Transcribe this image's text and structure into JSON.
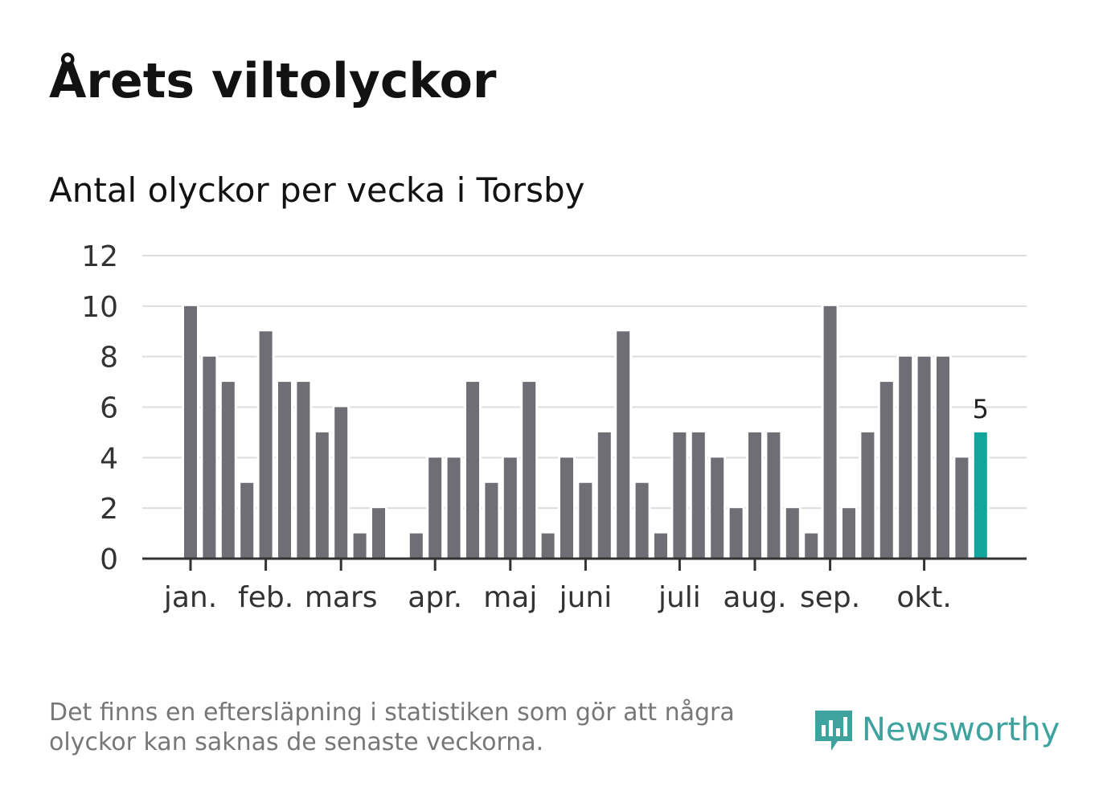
{
  "title": "Årets viltolyckor",
  "subtitle": "Antal olyckor per vecka i Torsby",
  "note": "Det finns en eftersläpning i statistiken som gör att några olyckor kan saknas de senaste veckorna.",
  "logo": "Newsworthy",
  "colors": {
    "bar": "#6f6e74",
    "highlight": "#12a59b",
    "grid": "#dddddd",
    "axis": "#333333"
  },
  "chart_data": {
    "type": "bar",
    "title": "Antal olyckor per vecka i Torsby",
    "ylim": [
      0,
      12
    ],
    "yticks": [
      0,
      2,
      4,
      6,
      8,
      10,
      12
    ],
    "values": [
      10,
      8,
      7,
      3,
      9,
      7,
      7,
      5,
      6,
      1,
      2,
      0,
      1,
      4,
      4,
      7,
      3,
      4,
      7,
      1,
      4,
      3,
      5,
      9,
      3,
      1,
      5,
      5,
      4,
      2,
      5,
      5,
      2,
      1,
      10,
      2,
      5,
      7,
      8,
      8,
      8,
      4,
      5
    ],
    "highlight_last": true,
    "last_label": "5",
    "months": [
      {
        "label": "jan.",
        "week": 0
      },
      {
        "label": "feb.",
        "week": 4
      },
      {
        "label": "mars",
        "week": 8
      },
      {
        "label": "apr.",
        "week": 13
      },
      {
        "label": "maj",
        "week": 17
      },
      {
        "label": "juni",
        "week": 21
      },
      {
        "label": "juli",
        "week": 26
      },
      {
        "label": "aug.",
        "week": 30
      },
      {
        "label": "sep.",
        "week": 34
      },
      {
        "label": "okt.",
        "week": 39
      }
    ]
  }
}
